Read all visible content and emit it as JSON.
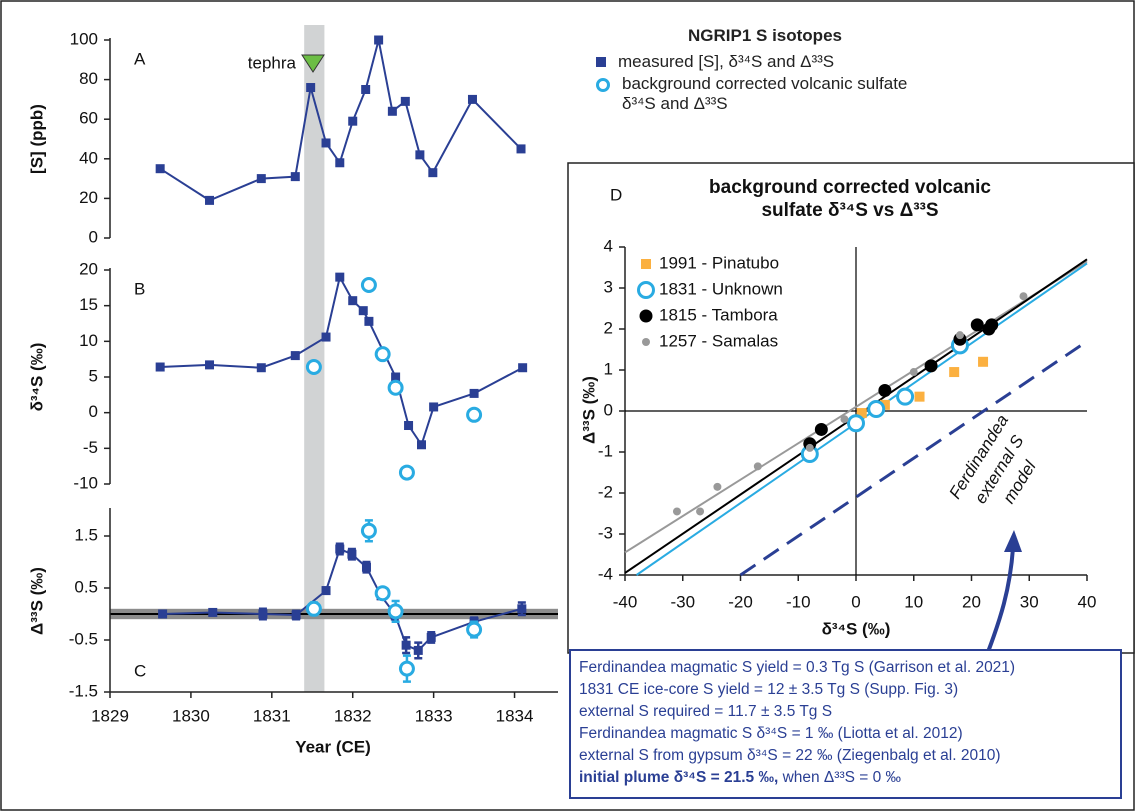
{
  "chart_data": [
    {
      "type": "line",
      "panel_label": "A",
      "ylabel": "[S] (ppb)",
      "ylim": [
        0,
        100
      ],
      "yticks": [
        0,
        20,
        40,
        60,
        80,
        100
      ],
      "annotation": "tephra",
      "tephra_span": [
        1831.4,
        1831.65
      ],
      "series": [
        {
          "color": "#2a3f94",
          "marker": "square",
          "line": true,
          "x": [
            1829.62,
            1830.23,
            1830.87,
            1831.29,
            1831.48,
            1831.67,
            1831.84,
            1832.0,
            1832.16,
            1832.32,
            1832.49,
            1832.65,
            1832.83,
            1832.99,
            1833.48,
            1834.08
          ],
          "values": [
            35,
            19,
            30,
            31,
            76,
            48,
            38,
            59,
            75,
            100,
            64,
            69,
            42,
            33,
            70,
            45
          ]
        }
      ]
    },
    {
      "type": "line",
      "panel_label": "B",
      "ylabel": "δ³⁴S (‰)",
      "ylim": [
        -10,
        20
      ],
      "yticks": [
        -10,
        -5,
        0,
        5,
        10,
        15,
        20
      ],
      "legend_title": "NGRIP1 S isotopes",
      "series": [
        {
          "name": "measured [S], δ³⁴S and Δ³³S",
          "color": "#2a3f94",
          "marker": "square",
          "line": true,
          "x": [
            1829.62,
            1830.23,
            1830.87,
            1831.29,
            1831.67,
            1831.84,
            1832.0,
            1832.13,
            1832.2,
            1832.53,
            1832.69,
            1832.85,
            1833.0,
            1833.5,
            1834.1
          ],
          "values": [
            6.4,
            6.7,
            6.3,
            8.0,
            10.6,
            19.0,
            15.7,
            14.3,
            12.8,
            5.0,
            -1.8,
            -4.5,
            0.8,
            2.7,
            6.3
          ]
        },
        {
          "name": "background corrected volcanic sulfate δ³⁴S and Δ³³S",
          "color": "#29abe2",
          "marker": "circle-open",
          "line": false,
          "x": [
            1831.52,
            1832.2,
            1832.37,
            1832.53,
            1832.67,
            1833.5
          ],
          "values": [
            6.4,
            17.9,
            8.2,
            3.5,
            -8.4,
            -0.3
          ]
        }
      ]
    },
    {
      "type": "line",
      "panel_label": "C",
      "ylabel": "Δ³³S (‰)",
      "xlabel": "Year (CE)",
      "xlim": [
        1829,
        1834.5
      ],
      "xticks": [
        1829,
        1830,
        1831,
        1832,
        1833,
        1834
      ],
      "ylim": [
        -1.5,
        2
      ],
      "yticks": [
        -1.5,
        -0.5,
        0.5,
        1.5
      ],
      "baseline": 0,
      "baseline_band": [
        -0.1,
        0.1
      ],
      "series": [
        {
          "color": "#2a3f94",
          "marker": "square",
          "line": true,
          "x": [
            1829.65,
            1830.27,
            1830.89,
            1831.3,
            1831.67,
            1831.84,
            1831.99,
            1832.17,
            1832.35,
            1832.52,
            1832.66,
            1832.81,
            1832.97,
            1833.5,
            1834.09
          ],
          "values": [
            0.0,
            0.03,
            0.0,
            -0.02,
            0.45,
            1.25,
            1.15,
            0.9,
            0.35,
            0.0,
            -0.6,
            -0.7,
            -0.45,
            -0.15,
            0.1
          ],
          "errors": [
            0.04,
            0.04,
            0.1,
            0.08,
            0.06,
            0.1,
            0.1,
            0.1,
            0.06,
            0.1,
            0.15,
            0.15,
            0.1,
            0.08,
            0.12
          ]
        },
        {
          "color": "#29abe2",
          "marker": "circle-open",
          "line": false,
          "x": [
            1831.52,
            1832.2,
            1832.37,
            1832.53,
            1832.67,
            1833.5
          ],
          "values": [
            0.1,
            1.6,
            0.4,
            0.05,
            -1.05,
            -0.3
          ],
          "errors": [
            0.12,
            0.2,
            0.07,
            0.2,
            0.25,
            0.15
          ]
        }
      ]
    },
    {
      "type": "scatter",
      "panel_label": "D",
      "title": "background corrected volcanic sulfate δ³⁴S vs Δ³³S",
      "xlabel": "δ³⁴S (‰)",
      "ylabel": "Δ³³S (‰)",
      "xlim": [
        -40,
        40
      ],
      "xticks": [
        -40,
        -30,
        -20,
        -10,
        0,
        10,
        20,
        30,
        40
      ],
      "ylim": [
        -4,
        4
      ],
      "yticks": [
        -4,
        -3,
        -2,
        -1,
        0,
        1,
        2,
        3,
        4
      ],
      "model_label": [
        "Ferdinandea",
        "external S",
        "model"
      ],
      "notes": [
        "Ferdinandea magmatic S yield = 0.3 Tg S (Garrison et al. 2021)",
        "1831 CE ice-core S yield = 12 ± 3.5 Tg S (Supp. Fig. 3)",
        "external S required = 11.7 ± 3.5 Tg S",
        "Ferdinandea magmatic S δ³⁴S = 1 ‰ (Liotta et al. 2012)",
        "external S from gypsum δ³⁴S = 22 ‰ (Ziegenbalg et al. 2010)"
      ],
      "note_bold": "initial plume δ³⁴S = 21.5 ‰,",
      "note_tail": "when Δ³³S = 0 ‰",
      "series": [
        {
          "color": "#999999",
          "marker": "line",
          "x": [
            -40,
            40
          ],
          "values": [
            -3.45,
            3.65
          ]
        },
        {
          "color": "#000000",
          "marker": "line",
          "x": [
            -40,
            40
          ],
          "values": [
            -3.95,
            3.7
          ]
        },
        {
          "color": "#29abe2",
          "marker": "line",
          "x": [
            -38,
            40
          ],
          "values": [
            -4,
            3.6
          ]
        },
        {
          "color": "#2a3f94",
          "marker": "dashed-line",
          "x": [
            -20,
            40
          ],
          "values": [
            -4,
            1.7
          ]
        },
        {
          "name": "1991 - Pinatubo",
          "color": "#fbb040",
          "marker": "square",
          "x": [
            1,
            5,
            11,
            17,
            22
          ],
          "values": [
            -0.05,
            0.15,
            0.35,
            0.95,
            1.2
          ]
        },
        {
          "name": "1831 - Unknown",
          "color": "#29abe2",
          "marker": "circle-open",
          "x": [
            -8,
            0,
            3.5,
            8.5,
            18
          ],
          "values": [
            -1.05,
            -0.3,
            0.05,
            0.35,
            1.6
          ]
        },
        {
          "name": "1815 - Tambora",
          "color": "#000000",
          "marker": "circle",
          "x": [
            -8,
            -6,
            5,
            13,
            18,
            21,
            23,
            23.5
          ],
          "values": [
            -0.8,
            -0.45,
            0.5,
            1.1,
            1.75,
            2.1,
            2.0,
            2.1
          ]
        },
        {
          "name": "1257 - Samalas",
          "color": "#999999",
          "marker": "dot",
          "x": [
            -31,
            -27,
            -24,
            -17,
            -8,
            -2,
            10,
            18,
            29
          ],
          "values": [
            -2.45,
            -2.45,
            -1.85,
            -1.35,
            -0.9,
            -0.2,
            0.95,
            1.85,
            2.8
          ]
        }
      ]
    }
  ]
}
